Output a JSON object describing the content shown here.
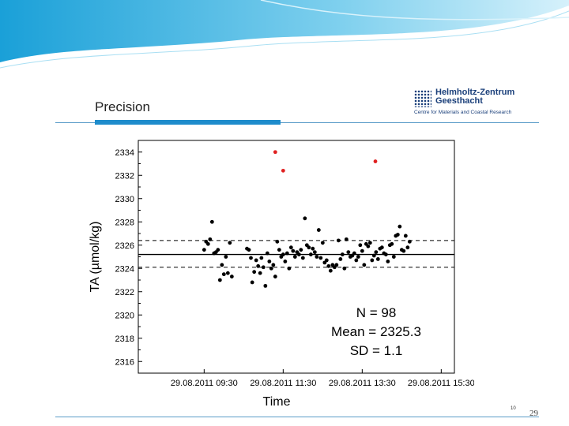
{
  "slide": {
    "title": "Precision",
    "logo_name": "Helmholtz-Zentrum\nGeesthacht",
    "logo_subtitle": "Centre for Materials and Coastal Research",
    "page_small": "10",
    "page_number": "29"
  },
  "colors": {
    "accent": "#1e8ccc",
    "outlier": "#e02020",
    "point": "#000000"
  },
  "chart_data": {
    "type": "scatter",
    "xlabel": "Time",
    "ylabel": "TA (µmol/kg)",
    "xlim": [
      "2011-08-29 07:50",
      "2011-08-29 15:50"
    ],
    "ylim": [
      2315,
      2335
    ],
    "x_ticks": [
      "29.08.2011 09:30",
      "29.08.2011 11:30",
      "29.08.2011 13:30",
      "29.08.2011 15:30"
    ],
    "y_ticks": [
      2316,
      2318,
      2320,
      2322,
      2324,
      2326,
      2328,
      2330,
      2332,
      2334
    ],
    "mean": 2325.3,
    "sd": 1.1,
    "reference_lines": [
      {
        "style": "solid",
        "y": 2325.2
      },
      {
        "style": "dashed",
        "y": 2326.4
      },
      {
        "style": "dashed",
        "y": 2324.1
      }
    ],
    "annotations": [
      "N = 98",
      "Mean = 2325.3",
      "SD = 1.1"
    ],
    "series": [
      {
        "points": [
          [
            "2011-08-29 09:30",
            2325.6
          ],
          [
            "2011-08-29 09:33",
            2326.3
          ],
          [
            "2011-08-29 09:36",
            2326.1
          ],
          [
            "2011-08-29 09:39",
            2326.5
          ],
          [
            "2011-08-29 09:42",
            2328.0
          ],
          [
            "2011-08-29 09:45",
            2325.3
          ],
          [
            "2011-08-29 09:48",
            2325.4
          ],
          [
            "2011-08-29 09:51",
            2325.6
          ],
          [
            "2011-08-29 09:54",
            2323.0
          ],
          [
            "2011-08-29 09:57",
            2324.3
          ],
          [
            "2011-08-29 10:00",
            2323.5
          ],
          [
            "2011-08-29 10:03",
            2325.0
          ],
          [
            "2011-08-29 10:06",
            2323.6
          ],
          [
            "2011-08-29 10:09",
            2326.2
          ],
          [
            "2011-08-29 10:12",
            2323.3
          ],
          [
            "2011-08-29 10:35",
            2325.7
          ],
          [
            "2011-08-29 10:38",
            2325.6
          ],
          [
            "2011-08-29 10:41",
            2324.9
          ],
          [
            "2011-08-29 10:43",
            2322.8
          ],
          [
            "2011-08-29 10:46",
            2323.7
          ],
          [
            "2011-08-29 10:49",
            2324.7
          ],
          [
            "2011-08-29 10:52",
            2324.2
          ],
          [
            "2011-08-29 10:55",
            2323.6
          ],
          [
            "2011-08-29 10:57",
            2324.9
          ],
          [
            "2011-08-29 11:00",
            2324.1
          ],
          [
            "2011-08-29 11:03",
            2322.5
          ],
          [
            "2011-08-29 11:06",
            2325.3
          ],
          [
            "2011-08-29 11:09",
            2324.6
          ],
          [
            "2011-08-29 11:12",
            2324.0
          ],
          [
            "2011-08-29 11:15",
            2324.3
          ],
          [
            "2011-08-29 11:18",
            2323.3
          ],
          [
            "2011-08-29 11:21",
            2326.3
          ],
          [
            "2011-08-29 11:24",
            2325.6
          ],
          [
            "2011-08-29 11:27",
            2325.0
          ],
          [
            "2011-08-29 11:30",
            2325.2
          ],
          [
            "2011-08-29 11:33",
            2324.6
          ],
          [
            "2011-08-29 11:36",
            2325.3
          ],
          [
            "2011-08-29 11:39",
            2324.0
          ],
          [
            "2011-08-29 11:42",
            2325.8
          ],
          [
            "2011-08-29 11:45",
            2325.5
          ],
          [
            "2011-08-29 11:48",
            2325.0
          ],
          [
            "2011-08-29 11:51",
            2325.4
          ],
          [
            "2011-08-29 11:54",
            2325.2
          ],
          [
            "2011-08-29 11:57",
            2325.6
          ],
          [
            "2011-08-29 12:00",
            2324.9
          ],
          [
            "2011-08-29 12:03",
            2328.3
          ],
          [
            "2011-08-29 12:06",
            2326.0
          ],
          [
            "2011-08-29 12:09",
            2325.8
          ],
          [
            "2011-08-29 12:12",
            2325.2
          ],
          [
            "2011-08-29 12:15",
            2325.7
          ],
          [
            "2011-08-29 12:18",
            2325.4
          ],
          [
            "2011-08-29 12:21",
            2325.0
          ],
          [
            "2011-08-29 12:24",
            2327.3
          ],
          [
            "2011-08-29 12:27",
            2324.9
          ],
          [
            "2011-08-29 12:30",
            2326.2
          ],
          [
            "2011-08-29 12:33",
            2324.5
          ],
          [
            "2011-08-29 12:36",
            2324.7
          ],
          [
            "2011-08-29 12:39",
            2324.2
          ],
          [
            "2011-08-29 12:42",
            2323.8
          ],
          [
            "2011-08-29 12:45",
            2324.3
          ],
          [
            "2011-08-29 12:48",
            2324.1
          ],
          [
            "2011-08-29 12:51",
            2324.3
          ],
          [
            "2011-08-29 12:54",
            2326.4
          ],
          [
            "2011-08-29 12:57",
            2324.8
          ],
          [
            "2011-08-29 13:00",
            2325.2
          ],
          [
            "2011-08-29 13:03",
            2324.0
          ],
          [
            "2011-08-29 13:06",
            2326.5
          ],
          [
            "2011-08-29 13:09",
            2325.4
          ],
          [
            "2011-08-29 13:12",
            2325.0
          ],
          [
            "2011-08-29 13:15",
            2325.1
          ],
          [
            "2011-08-29 13:18",
            2325.3
          ],
          [
            "2011-08-29 13:21",
            2324.7
          ],
          [
            "2011-08-29 13:24",
            2325.0
          ],
          [
            "2011-08-29 13:27",
            2326.0
          ],
          [
            "2011-08-29 13:30",
            2325.5
          ],
          [
            "2011-08-29 13:33",
            2324.3
          ],
          [
            "2011-08-29 13:36",
            2326.1
          ],
          [
            "2011-08-29 13:39",
            2325.9
          ],
          [
            "2011-08-29 13:42",
            2326.2
          ],
          [
            "2011-08-29 13:45",
            2324.7
          ],
          [
            "2011-08-29 13:48",
            2325.1
          ],
          [
            "2011-08-29 13:51",
            2325.4
          ],
          [
            "2011-08-29 13:54",
            2324.8
          ],
          [
            "2011-08-29 13:57",
            2325.7
          ],
          [
            "2011-08-29 14:00",
            2325.8
          ],
          [
            "2011-08-29 14:03",
            2325.3
          ],
          [
            "2011-08-29 14:06",
            2325.2
          ],
          [
            "2011-08-29 14:09",
            2324.6
          ],
          [
            "2011-08-29 14:12",
            2326.0
          ],
          [
            "2011-08-29 14:15",
            2326.1
          ],
          [
            "2011-08-29 14:18",
            2325.0
          ],
          [
            "2011-08-29 14:21",
            2326.8
          ],
          [
            "2011-08-29 14:24",
            2326.9
          ],
          [
            "2011-08-29 14:27",
            2327.6
          ],
          [
            "2011-08-29 14:30",
            2325.6
          ],
          [
            "2011-08-29 14:33",
            2325.5
          ],
          [
            "2011-08-29 14:36",
            2326.8
          ],
          [
            "2011-08-29 14:39",
            2325.8
          ],
          [
            "2011-08-29 14:42",
            2326.3
          ]
        ]
      },
      {
        "points": [
          [
            "2011-08-29 11:18",
            2334.0
          ],
          [
            "2011-08-29 11:30",
            2332.4
          ],
          [
            "2011-08-29 13:50",
            2333.2
          ]
        ]
      }
    ]
  }
}
